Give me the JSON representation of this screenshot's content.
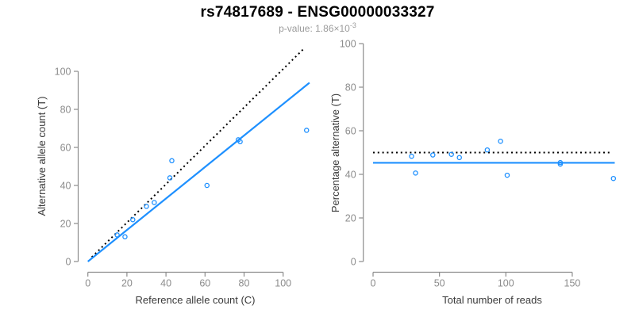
{
  "header": {
    "title": "rs74817689 - ENSG00000033327",
    "subtitle_prefix": "p-value: 1.86×10",
    "subtitle_exponent": "-3"
  },
  "colors": {
    "accent_blue": "#1E90FF",
    "dotted_line": "#000000",
    "axis_line": "#8c8c8c",
    "tick_label": "#8c8c8c",
    "axis_title": "#3a3a3a",
    "subtitle_grey": "#9b9b9b",
    "title_black": "#000000"
  },
  "chart_data": [
    {
      "type": "scatter",
      "name": "allele-counts-plot",
      "xlabel": "Reference allele count (C)",
      "ylabel": "Alternative allele count (T)",
      "xlim": [
        0,
        113
      ],
      "ylim": [
        0,
        113
      ],
      "xticks": [
        0,
        20,
        40,
        60,
        80,
        100
      ],
      "yticks": [
        0,
        20,
        40,
        60,
        80,
        100
      ],
      "grid": false,
      "points": [
        {
          "x": 15,
          "y": 14
        },
        {
          "x": 19,
          "y": 13
        },
        {
          "x": 23,
          "y": 22
        },
        {
          "x": 30,
          "y": 29
        },
        {
          "x": 34,
          "y": 31
        },
        {
          "x": 42,
          "y": 44
        },
        {
          "x": 43,
          "y": 53
        },
        {
          "x": 61,
          "y": 40
        },
        {
          "x": 77,
          "y": 64
        },
        {
          "x": 78,
          "y": 63
        },
        {
          "x": 112,
          "y": 69
        }
      ],
      "lines": [
        {
          "role": "identity-line-y-equals-x",
          "style": "dotted",
          "color": "#000000",
          "x1": 2,
          "y1": 2.3,
          "x2": 111,
          "y2": 112.3
        },
        {
          "role": "fitted-ratio-line",
          "style": "solid",
          "color": "#1E90FF",
          "x1": 0,
          "y1": 0,
          "x2": 113.5,
          "y2": 94
        }
      ]
    },
    {
      "type": "scatter",
      "name": "percentage-vs-reads-plot",
      "xlabel": "Total number of reads",
      "ylabel": "Percentage alternative (T)",
      "xlim": [
        0,
        185
      ],
      "ylim": [
        0,
        100
      ],
      "xticks": [
        0,
        50,
        100,
        150
      ],
      "yticks": [
        0,
        20,
        40,
        60,
        80,
        100
      ],
      "grid": false,
      "points": [
        {
          "x": 29,
          "y": 48.3
        },
        {
          "x": 32,
          "y": 40.6
        },
        {
          "x": 45,
          "y": 48.9
        },
        {
          "x": 59,
          "y": 49.2
        },
        {
          "x": 65,
          "y": 47.7
        },
        {
          "x": 86,
          "y": 51.2
        },
        {
          "x": 96,
          "y": 55.2
        },
        {
          "x": 101,
          "y": 39.6
        },
        {
          "x": 141,
          "y": 45.4
        },
        {
          "x": 141,
          "y": 44.7
        },
        {
          "x": 181,
          "y": 38.1
        }
      ],
      "lines": [
        {
          "role": "expected-50-percent-line",
          "style": "dotted",
          "color": "#000000",
          "x1": 0,
          "y1": 50,
          "x2": 178,
          "y2": 50
        },
        {
          "role": "fitted-mean-percentage-line",
          "style": "solid",
          "color": "#1E90FF",
          "x1": 0,
          "y1": 45.3,
          "x2": 182,
          "y2": 45.3
        }
      ]
    }
  ]
}
